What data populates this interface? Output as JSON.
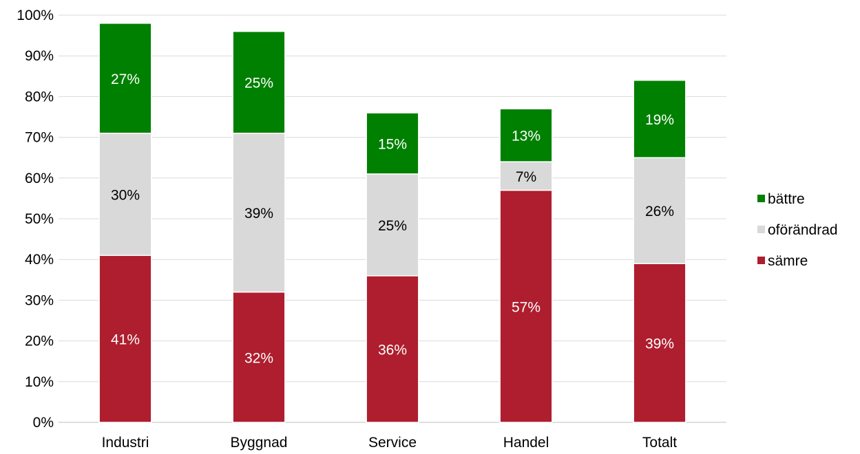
{
  "chart_data": {
    "type": "bar",
    "stacked": true,
    "categories": [
      "Industri",
      "Byggnad",
      "Service",
      "Handel",
      "Totalt"
    ],
    "series": [
      {
        "name": "sämre",
        "color": "#AE1E2E",
        "label_color": "#ffffff",
        "values": [
          41,
          32,
          36,
          57,
          39
        ],
        "labels": [
          "41%",
          "32%",
          "36%",
          "57%",
          "39%"
        ]
      },
      {
        "name": "oförändrad",
        "color": "#D9D9D9",
        "label_color": "#000000",
        "values": [
          30,
          39,
          25,
          7,
          26
        ],
        "labels": [
          "30%",
          "39%",
          "25%",
          "7%",
          "26%"
        ]
      },
      {
        "name": "bättre",
        "color": "#008000",
        "label_color": "#ffffff",
        "values": [
          27,
          25,
          15,
          13,
          19
        ],
        "labels": [
          "27%",
          "25%",
          "15%",
          "13%",
          "19%"
        ]
      }
    ],
    "ylim": [
      0,
      100
    ],
    "yticks": [
      "0%",
      "10%",
      "20%",
      "30%",
      "40%",
      "50%",
      "60%",
      "70%",
      "80%",
      "90%",
      "100%"
    ],
    "grid": true,
    "legend_position": "right",
    "legend_order": [
      "bättre",
      "oförändrad",
      "sämre"
    ]
  }
}
